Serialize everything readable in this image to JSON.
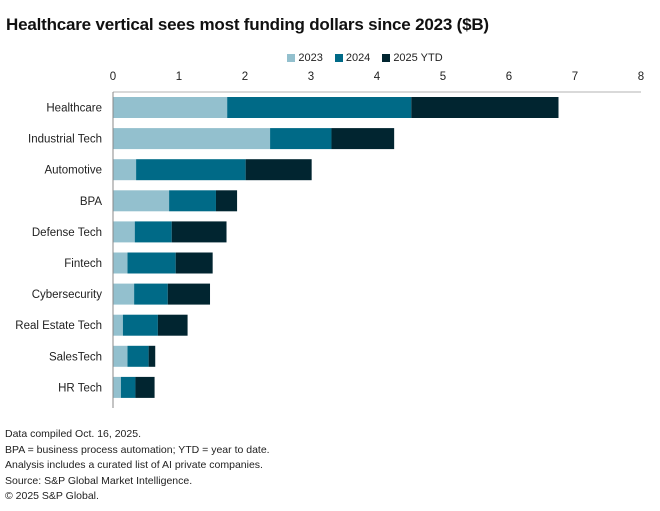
{
  "chart_data": {
    "type": "bar",
    "orientation": "horizontal",
    "stacked": true,
    "title": "Healthcare vertical sees most funding dollars since 2023 ($B)",
    "xlabel": "",
    "ylabel": "",
    "xlim": [
      0,
      8
    ],
    "xticks": [
      "0",
      "1",
      "2",
      "3",
      "4",
      "5",
      "6",
      "7",
      "8"
    ],
    "grid": false,
    "legend_position": "top-center",
    "categories": [
      "Healthcare",
      "Industrial Tech",
      "Automotive",
      "BPA",
      "Defense Tech",
      "Fintech",
      "Cybersecurity",
      "Real Estate Tech",
      "SalesTech",
      "HR Tech"
    ],
    "series": [
      {
        "name": "2023",
        "color": "#93C0CE",
        "values": [
          1.73,
          2.38,
          0.35,
          0.85,
          0.33,
          0.22,
          0.32,
          0.15,
          0.22,
          0.12
        ]
      },
      {
        "name": "2024",
        "color": "#006A87",
        "values": [
          2.79,
          0.93,
          1.66,
          0.71,
          0.56,
          0.73,
          0.51,
          0.53,
          0.32,
          0.22
        ]
      },
      {
        "name": "2025 YTD",
        "color": "#012530",
        "values": [
          2.23,
          0.95,
          1.0,
          0.32,
          0.83,
          0.56,
          0.64,
          0.45,
          0.1,
          0.29
        ]
      }
    ]
  },
  "notes": [
    "Data compiled Oct. 16, 2025.",
    "BPA = business process automation; YTD = year to date.",
    "Analysis includes a curated list of AI private companies.",
    "Source: S&P Global Market Intelligence.",
    "© 2025 S&P Global."
  ]
}
